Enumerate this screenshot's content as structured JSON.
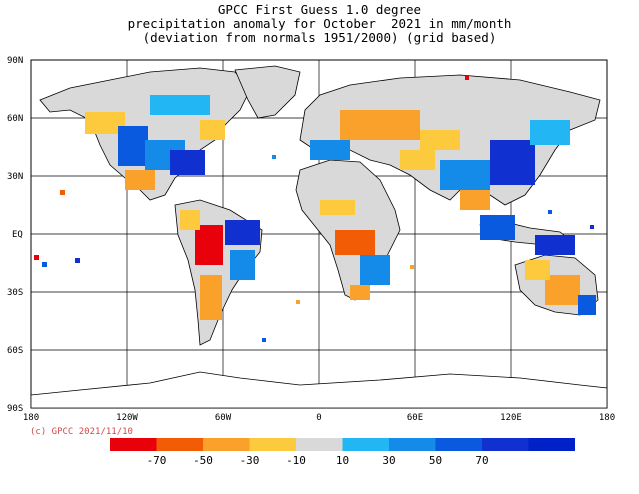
{
  "title": {
    "line1": "GPCC First Guess 1.0 degree",
    "line2": "precipitation anomaly for October  2021 in mm/month",
    "line3": "(deviation from normals 1951/2000) (grid based)"
  },
  "credit": "(c) GPCC 2021/11/10",
  "map": {
    "lat_labels": [
      "90N",
      "60N",
      "30N",
      "EQ",
      "30S",
      "60S",
      "90S"
    ],
    "lon_labels": [
      "180",
      "120W",
      "60W",
      "0",
      "60E",
      "120E",
      "180"
    ],
    "land_color_no_anomaly": "#d9d9d9",
    "ocean_color": "#ffffff"
  },
  "colorbar": {
    "colors": [
      "#e8000b",
      "#f25c05",
      "#f9a12b",
      "#fcca3c",
      "#d9d9d9",
      "#23b6f5",
      "#148be8",
      "#0a5ae0",
      "#1030d0",
      "#0020c8"
    ],
    "labels": [
      "-70",
      "-50",
      "-30",
      "-10",
      "10",
      "30",
      "50",
      "70"
    ]
  }
}
